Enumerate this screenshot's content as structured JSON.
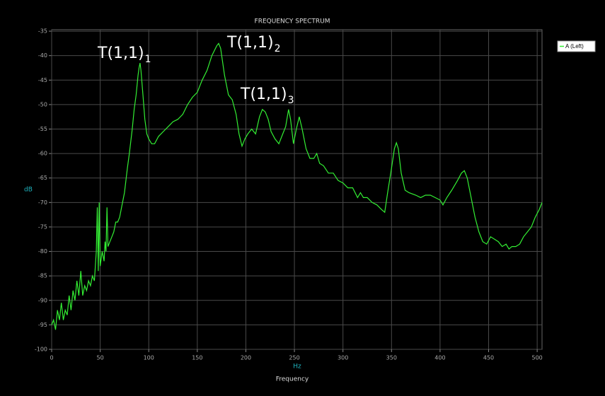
{
  "chart_data": {
    "type": "line",
    "title": "FREQUENCY SPECTRUM",
    "xlabel": "Frequency",
    "xunit": "Hz",
    "ylabel": "dB",
    "xlim": [
      0,
      505
    ],
    "ylim": [
      -100,
      -34.7
    ],
    "xticks": [
      0,
      50,
      100,
      150,
      200,
      250,
      300,
      350,
      400,
      450,
      500
    ],
    "yticks": [
      -100,
      -95,
      -90,
      -85,
      -80,
      -75,
      -70,
      -65,
      -60,
      -55,
      -50,
      -45,
      -40,
      -35
    ],
    "grid": true,
    "legend": "top-right",
    "annotations": [
      {
        "text": "T(1,1)",
        "sub": "1"
      },
      {
        "text": "T(1,1)",
        "sub": "2"
      },
      {
        "text": "T(1,1)",
        "sub": "3"
      }
    ],
    "x": [
      0,
      2,
      4,
      6,
      8,
      10,
      12,
      14,
      16,
      18,
      20,
      22,
      24,
      26,
      28,
      30,
      32,
      34,
      36,
      38,
      40,
      42,
      44,
      46,
      47,
      48,
      49,
      50,
      52,
      54,
      55,
      56,
      57,
      58,
      60,
      62,
      64,
      66,
      68,
      70,
      72,
      75,
      78,
      80,
      83,
      85,
      87,
      89,
      90,
      91,
      92,
      94,
      96,
      98,
      100,
      103,
      106,
      110,
      115,
      120,
      125,
      130,
      135,
      140,
      145,
      150,
      155,
      160,
      165,
      170,
      172,
      174,
      178,
      182,
      186,
      190,
      193,
      196,
      199,
      202,
      206,
      210,
      214,
      217,
      220,
      223,
      226,
      230,
      234,
      238,
      241,
      244,
      246,
      249,
      252,
      255,
      258,
      262,
      266,
      270,
      273,
      276,
      280,
      285,
      290,
      295,
      300,
      305,
      310,
      315,
      318,
      321,
      325,
      330,
      335,
      340,
      343,
      346,
      350,
      353,
      355,
      357,
      360,
      364,
      368,
      375,
      380,
      385,
      390,
      395,
      400,
      403,
      407,
      412,
      418,
      422,
      425,
      428,
      432,
      436,
      440,
      444,
      448,
      452,
      456,
      460,
      464,
      468,
      471,
      474,
      478,
      482,
      486,
      490,
      494,
      498,
      502,
      505
    ],
    "series": [
      {
        "name": "A (Left)",
        "color": "#33ee33",
        "values": [
          -95,
          -94,
          -96,
          -92,
          -94,
          -90.5,
          -94,
          -92,
          -93,
          -89,
          -92,
          -88,
          -90,
          -86,
          -89,
          -84,
          -89,
          -87,
          -88,
          -86,
          -87,
          -85,
          -86,
          -80,
          -71,
          -84,
          -70,
          -83,
          -80,
          -82,
          -78,
          -80,
          -71,
          -79,
          -78,
          -77,
          -76,
          -74,
          -74,
          -73,
          -71,
          -68,
          -63,
          -60,
          -55,
          -51,
          -48,
          -44,
          -42.5,
          -41.5,
          -43,
          -48,
          -53,
          -56,
          -57,
          -58,
          -58,
          -56.5,
          -55.5,
          -54.5,
          -53.5,
          -53,
          -52,
          -50,
          -48.5,
          -47.5,
          -45,
          -43,
          -40,
          -38,
          -37.5,
          -38.5,
          -44,
          -48,
          -49,
          -52,
          -56,
          -58.5,
          -57,
          -56,
          -55,
          -56,
          -52.5,
          -51,
          -51.5,
          -53,
          -55.5,
          -57,
          -58,
          -56,
          -54.5,
          -51,
          -53,
          -58,
          -55,
          -52.5,
          -55,
          -59,
          -61,
          -61,
          -60,
          -62,
          -62.5,
          -64,
          -64,
          -65.5,
          -66,
          -67,
          -67,
          -69,
          -68,
          -69,
          -69,
          -70,
          -70.5,
          -71.5,
          -72,
          -68,
          -63,
          -59,
          -57.8,
          -59,
          -64,
          -67.5,
          -68,
          -68.5,
          -69,
          -68.5,
          -68.5,
          -69,
          -69.5,
          -70.5,
          -69,
          -67.5,
          -65.5,
          -64,
          -63.5,
          -65,
          -69,
          -73,
          -76,
          -78,
          -78.5,
          -77,
          -77.5,
          -78,
          -79,
          -78.5,
          -79.5,
          -79,
          -79,
          -78.5,
          -77,
          -76,
          -75,
          -73,
          -71.5,
          -70
        ]
      }
    ]
  }
}
